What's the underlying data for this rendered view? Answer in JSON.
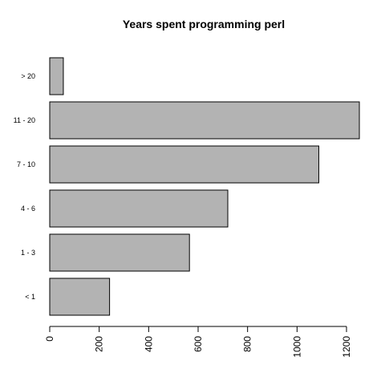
{
  "chart_data": {
    "type": "bar",
    "orientation": "horizontal",
    "title": "Years spent programming perl",
    "xlabel": "",
    "ylabel": "",
    "categories": [
      "< 1",
      "1 - 3",
      "4 - 6",
      "7 - 10",
      "11 - 20",
      "> 20"
    ],
    "values": [
      242,
      565,
      720,
      1088,
      1252,
      55
    ],
    "xlim": [
      0,
      1200
    ],
    "xticks": [
      "0",
      "200",
      "400",
      "600",
      "800",
      "1000",
      "1200"
    ],
    "xtick_values": [
      0,
      200,
      400,
      600,
      800,
      1000,
      1200
    ],
    "grid": false,
    "legend": "none",
    "bar_color": "#b3b3b3",
    "bar_border_color": "#000000"
  }
}
